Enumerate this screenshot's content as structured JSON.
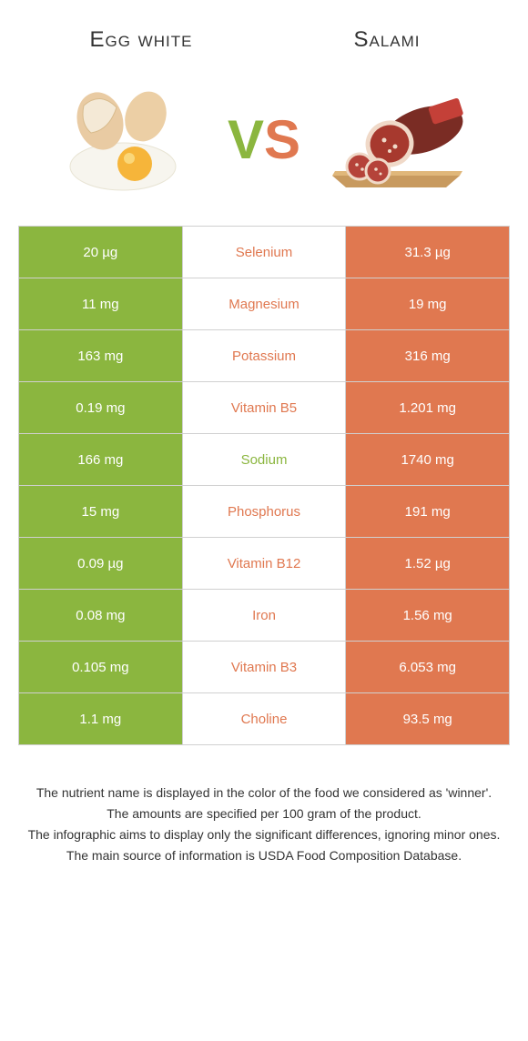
{
  "header": {
    "left_label": "Egg white",
    "right_label": "Salami"
  },
  "vs": {
    "v": "V",
    "s": "S"
  },
  "colors": {
    "egg_white": "#8bb63f",
    "salami": "#e07850"
  },
  "rows": [
    {
      "left": "20 µg",
      "name": "Selenium",
      "right": "31.3 µg",
      "winner": "salami"
    },
    {
      "left": "11 mg",
      "name": "Magnesium",
      "right": "19 mg",
      "winner": "salami"
    },
    {
      "left": "163 mg",
      "name": "Potassium",
      "right": "316 mg",
      "winner": "salami"
    },
    {
      "left": "0.19 mg",
      "name": "Vitamin B5",
      "right": "1.201 mg",
      "winner": "salami"
    },
    {
      "left": "166 mg",
      "name": "Sodium",
      "right": "1740 mg",
      "winner": "egg_white"
    },
    {
      "left": "15 mg",
      "name": "Phosphorus",
      "right": "191 mg",
      "winner": "salami"
    },
    {
      "left": "0.09 µg",
      "name": "Vitamin B12",
      "right": "1.52 µg",
      "winner": "salami"
    },
    {
      "left": "0.08 mg",
      "name": "Iron",
      "right": "1.56 mg",
      "winner": "salami"
    },
    {
      "left": "0.105 mg",
      "name": "Vitamin B3",
      "right": "6.053 mg",
      "winner": "salami"
    },
    {
      "left": "1.1 mg",
      "name": "Choline",
      "right": "93.5 mg",
      "winner": "salami"
    }
  ],
  "footer": {
    "line1": "The nutrient name is displayed in the color of the food we considered as 'winner'.",
    "line2": "The amounts are specified per 100 gram of the product.",
    "line3": "The infographic aims to display only the significant differences, ignoring minor ones.",
    "line4": "The main source of information is USDA Food Composition Database."
  }
}
